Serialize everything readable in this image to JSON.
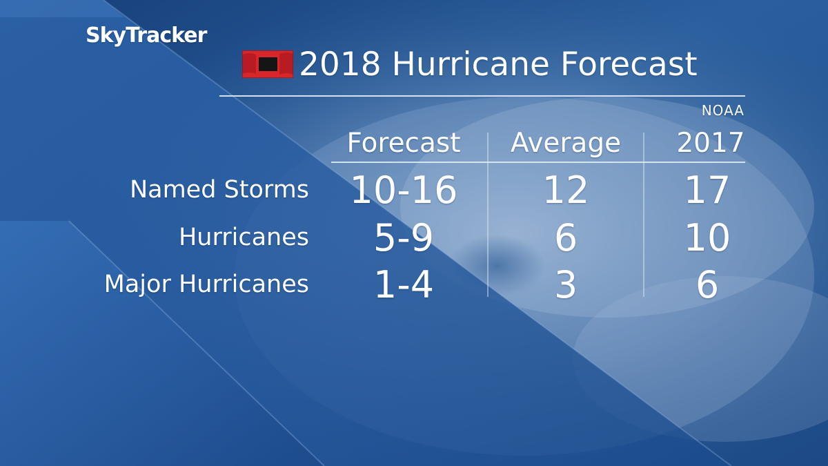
{
  "brand": {
    "logo_text": "SkyTracker"
  },
  "title": "2018 Hurricane Forecast",
  "source": "NOAA",
  "icons": {
    "flag": "hurricane-warning-flag-icon"
  },
  "colors": {
    "flag_red": "#d8262b",
    "flag_black": "#151515",
    "background_blue": "#1f4f8c"
  },
  "table": {
    "columns": [
      "Forecast",
      "Average",
      "2017"
    ],
    "rows": [
      {
        "label": "Named Storms",
        "values": [
          "10-16",
          "12",
          "17"
        ]
      },
      {
        "label": "Hurricanes",
        "values": [
          "5-9",
          "6",
          "10"
        ]
      },
      {
        "label": "Major Hurricanes",
        "values": [
          "1-4",
          "3",
          "6"
        ]
      }
    ]
  }
}
